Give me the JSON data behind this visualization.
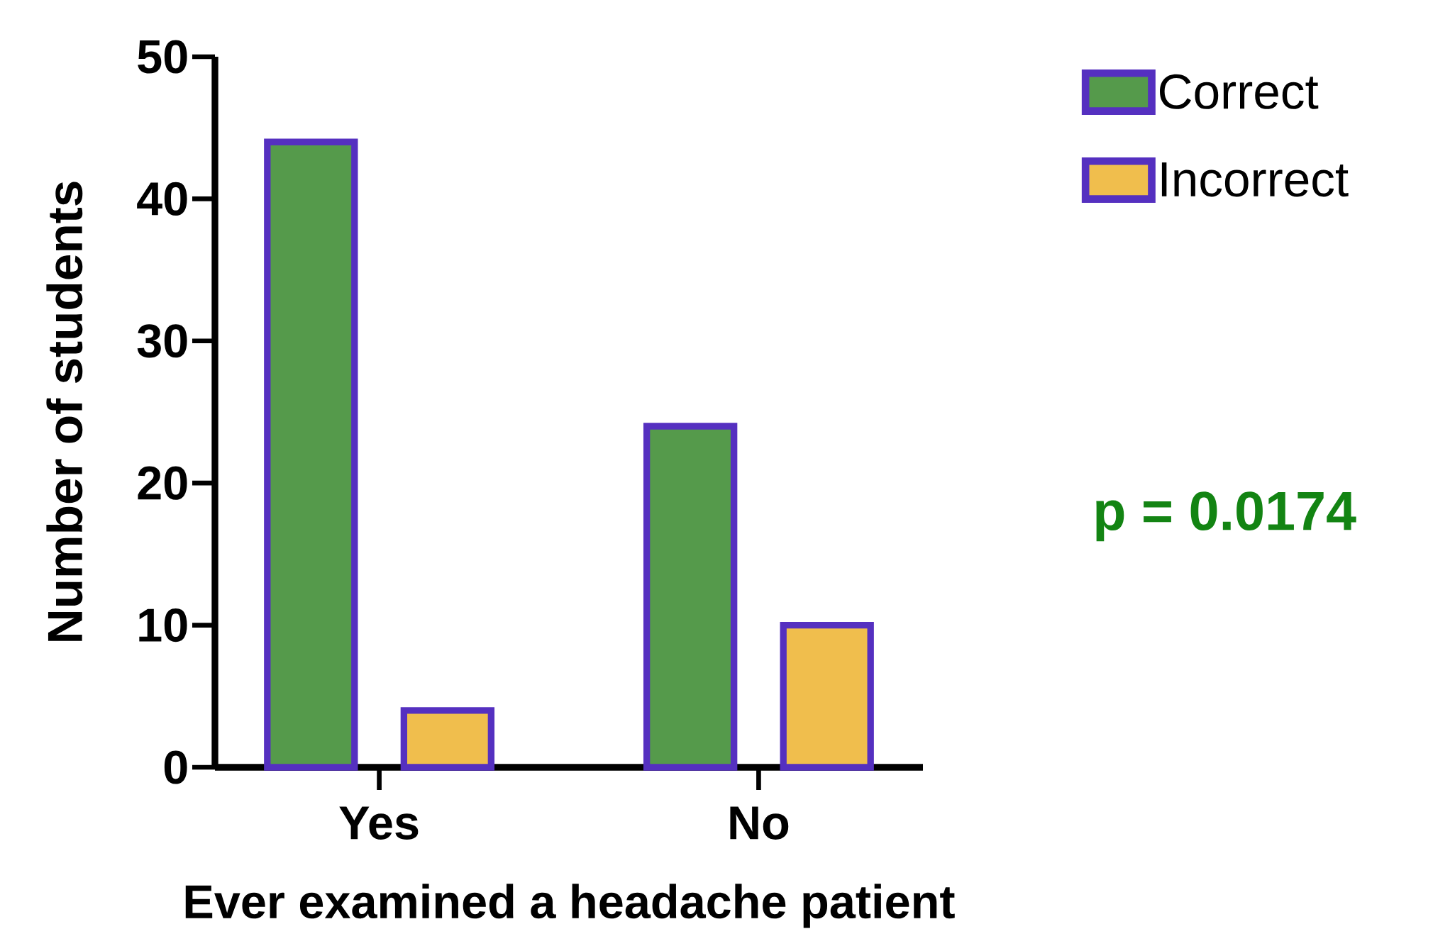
{
  "chart_data": {
    "type": "bar",
    "xlabel": "Ever examined a headache patient",
    "ylabel": "Number of students",
    "categories": [
      "Yes",
      "No"
    ],
    "series": [
      {
        "name": "Correct",
        "color": "#559a4b",
        "values": [
          44,
          24
        ]
      },
      {
        "name": "Incorrect",
        "color": "#f0be4d",
        "values": [
          4,
          10
        ]
      }
    ],
    "ylim": [
      0,
      50
    ],
    "yticks": [
      0,
      10,
      20,
      30,
      40,
      50
    ],
    "grid": false,
    "legend": "top right",
    "annotations": [
      "p = 0.0174"
    ]
  }
}
